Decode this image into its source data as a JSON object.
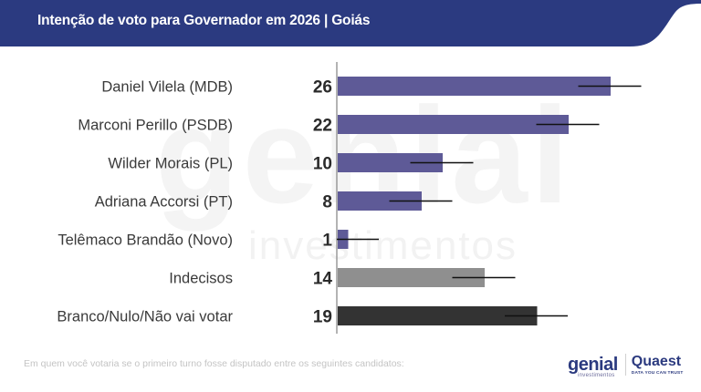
{
  "header": {
    "title": "Intenção de voto para Governador em 2026 | Goiás"
  },
  "watermark": {
    "brand": "genial",
    "sub": "investimentos"
  },
  "footnote": "Em quem você votaria se o primeiro turno fosse disputado entre os seguintes candidatos:",
  "logos": {
    "genial": "genial",
    "genial_sub": "investimentos",
    "quaest": "Quaest",
    "quaest_sub": "DATA YOU CAN TRUST"
  },
  "colors": {
    "header": "#2b3a80",
    "candidate": "#5e5a97",
    "undecided": "#8f8f8f",
    "blank": "#333333",
    "error_bar": "#111111"
  },
  "chart_data": {
    "type": "bar",
    "orientation": "horizontal",
    "title": "Intenção de voto para Governador em 2026 | Goiás",
    "xlabel": "",
    "ylabel": "",
    "xlim": [
      0,
      30
    ],
    "grid": false,
    "legend": "none",
    "unit": "%",
    "categories": [
      "Daniel Vilela (MDB)",
      "Marconi Perillo (PSDB)",
      "Wilder Morais (PL)",
      "Adriana Accorsi (PT)",
      "Telêmaco Brandão (Novo)",
      "Indecisos",
      "Branco/Nulo/Não vai votar"
    ],
    "values": [
      26,
      22,
      10,
      8,
      1,
      14,
      19
    ],
    "margin_of_error": 3,
    "bar_kind": [
      "candidate",
      "candidate",
      "candidate",
      "candidate",
      "candidate",
      "undecided",
      "blank"
    ]
  }
}
